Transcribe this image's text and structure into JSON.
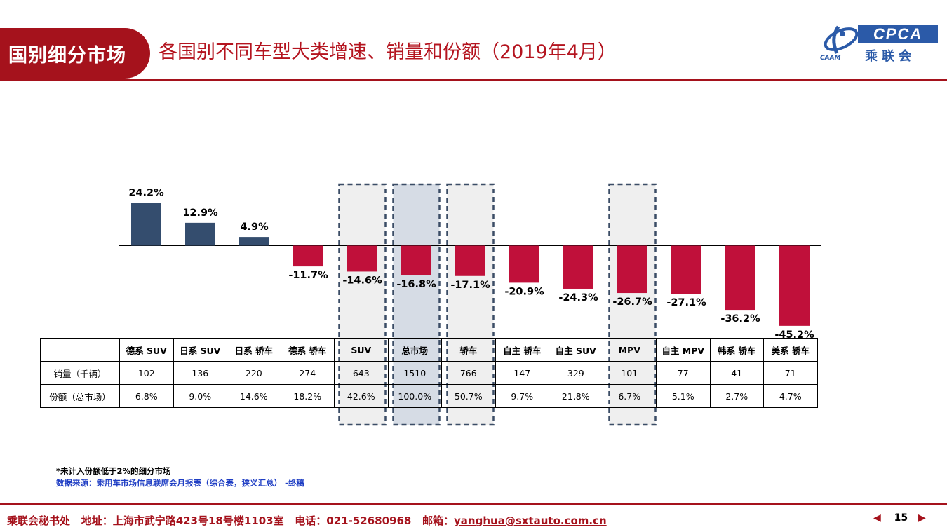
{
  "header": {
    "section_label": "国别细分市场",
    "title": "各国别不同车型大类增速、销量和份额（2019年4月）"
  },
  "logo": {
    "cpca_text": "CPCA",
    "cn_text": "乘联会",
    "caam_text": "CAAM"
  },
  "colors": {
    "positive": "#344d6e",
    "negative": "#c0103a",
    "brand_red": "#a5121c",
    "highlight_fill": "#d6dce5",
    "box_fill": "#efefef",
    "box_border": "#3b4d66"
  },
  "chart_data": {
    "type": "bar",
    "categories": [
      "德系 SUV",
      "日系 SUV",
      "日系 轿车",
      "德系 轿车",
      "SUV",
      "总市场",
      "轿车",
      "自主 轿车",
      "自主 SUV",
      "MPV",
      "自主 MPV",
      "韩系 轿车",
      "美系 轿车"
    ],
    "values": [
      24.2,
      12.9,
      4.9,
      -11.7,
      -14.6,
      -16.8,
      -17.1,
      -20.9,
      -24.3,
      -26.7,
      -27.1,
      -36.2,
      -45.2
    ],
    "value_labels": [
      "24.2%",
      "12.9%",
      "4.9%",
      "-11.7%",
      "-14.6%",
      "-16.8%",
      "-17.1%",
      "-20.9%",
      "-24.3%",
      "-26.7%",
      "-27.1%",
      "-36.2%",
      "-45.2%"
    ],
    "highlighted_boxes": [
      "SUV",
      "总市场",
      "轿车",
      "MPV"
    ],
    "shaded_box": "总市场",
    "ylabel": "",
    "xlabel": ""
  },
  "table": {
    "rows": [
      {
        "label": "销量（千辆）",
        "values": [
          "102",
          "136",
          "220",
          "274",
          "643",
          "1510",
          "766",
          "147",
          "329",
          "101",
          "77",
          "41",
          "71"
        ]
      },
      {
        "label": "份额（总市场）",
        "values": [
          "6.8%",
          "9.0%",
          "14.6%",
          "18.2%",
          "42.6%",
          "100.0%",
          "50.7%",
          "9.7%",
          "21.8%",
          "6.7%",
          "5.1%",
          "2.7%",
          "4.7%"
        ]
      }
    ]
  },
  "notes": {
    "note1": "*未计入份额低于2%的细分市场",
    "note2": "数据来源：乘用车市场信息联席会月报表（综合表，狭义汇总） -终稿"
  },
  "footer": {
    "office": "乘联会秘书处",
    "address": "地址：上海市武宁路423号18号楼1103室",
    "phone": "电话：021-52680968",
    "email_label": "邮箱：",
    "email": "yanghua@sxtauto.com.cn",
    "page_number": "15",
    "prev_icon": "◀",
    "next_icon": "▶"
  }
}
